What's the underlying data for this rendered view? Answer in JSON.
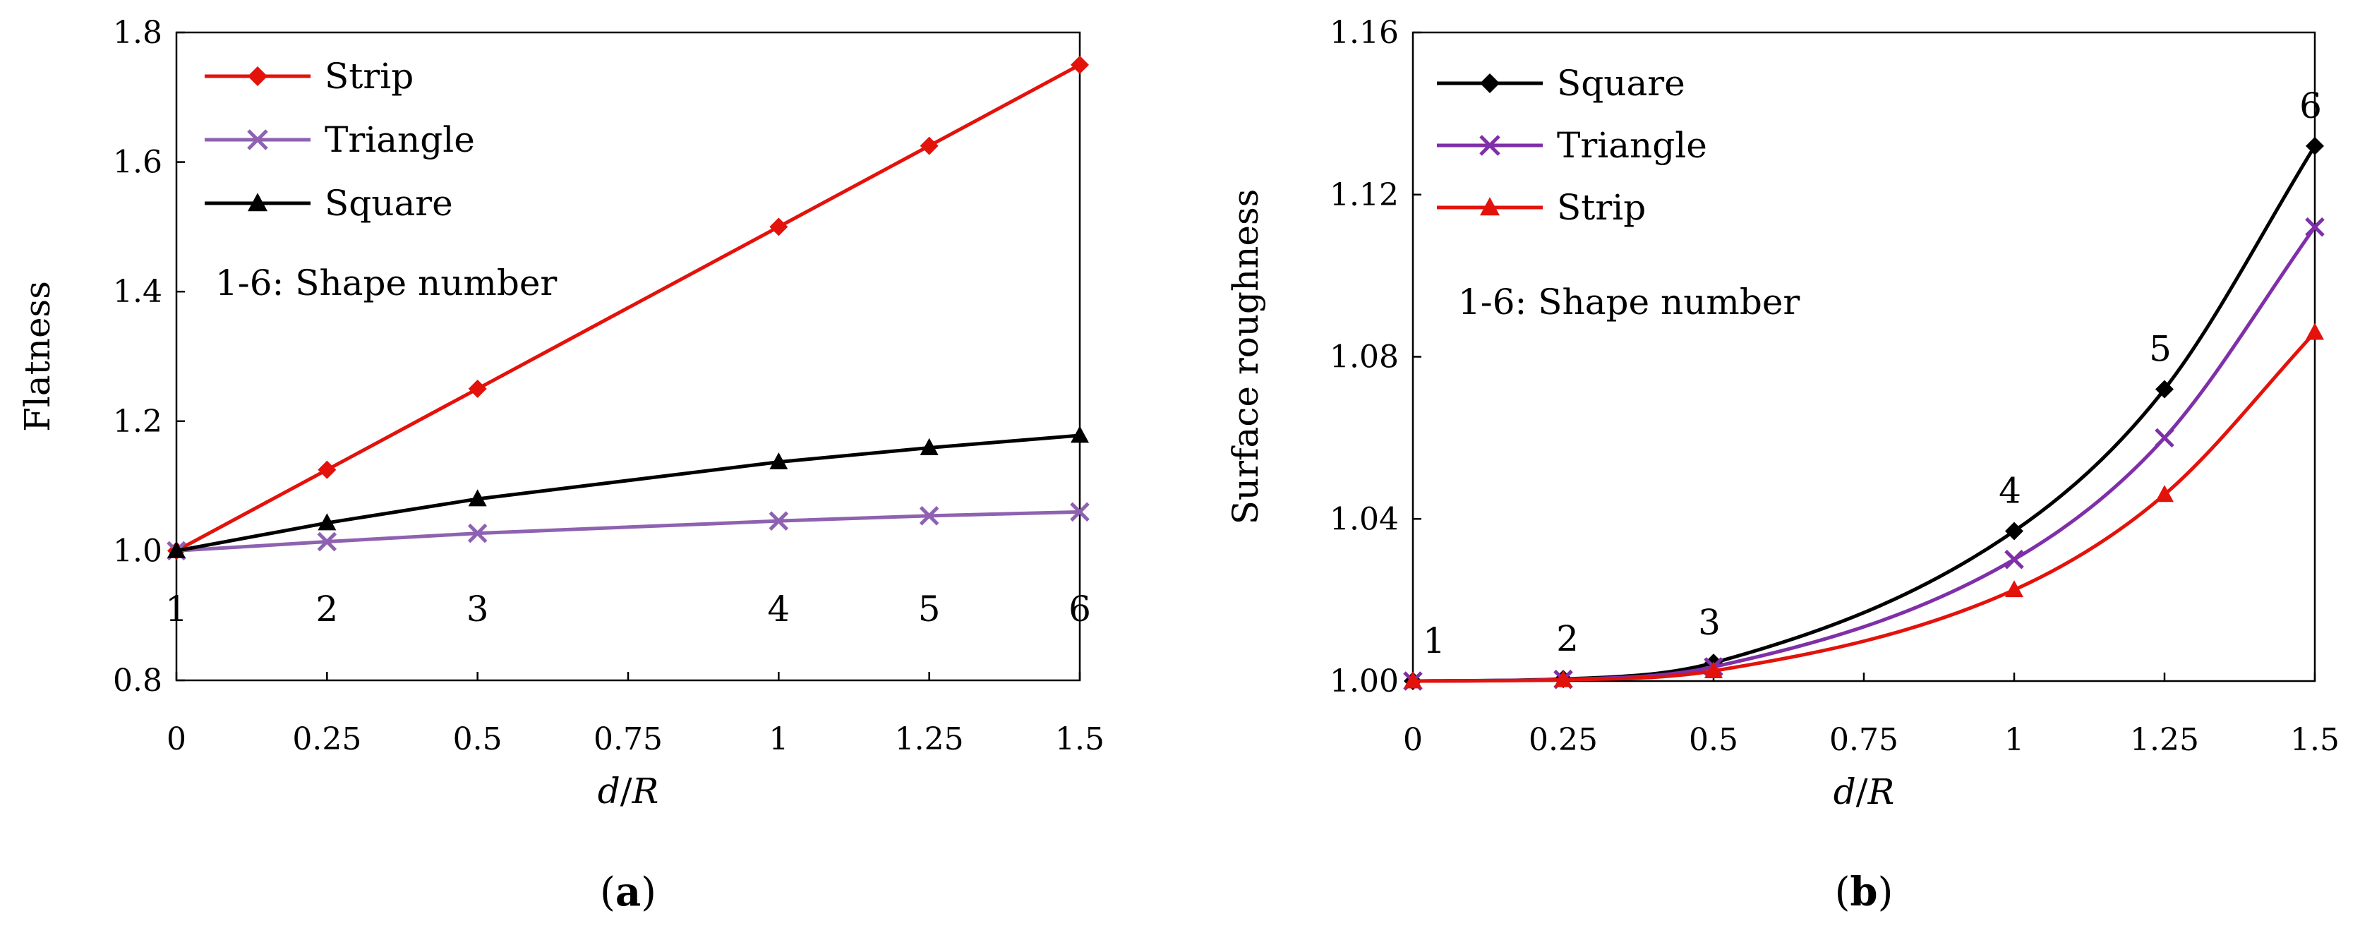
{
  "chart_data": [
    {
      "type": "line",
      "panel_label": "(a)",
      "xlabel": "d/R",
      "ylabel": "Flatness",
      "x": [
        0,
        0.25,
        0.5,
        1,
        1.25,
        1.5
      ],
      "x_tick_labels": [
        "0",
        "0.25",
        "0.5",
        "0.75",
        "1",
        "1.25",
        "1.5"
      ],
      "x_ticks": [
        0,
        0.25,
        0.5,
        0.75,
        1,
        1.25,
        1.5
      ],
      "xlim": [
        0,
        1.5
      ],
      "ylim": [
        0.8,
        1.8
      ],
      "y_ticks": [
        0.8,
        1.0,
        1.2,
        1.4,
        1.6,
        1.8
      ],
      "y_tick_labels": [
        "0.8",
        "1.0",
        "1.2",
        "1.4",
        "1.6",
        "1.8"
      ],
      "series": [
        {
          "name": "Strip",
          "color": "#e3120b",
          "marker": "diamond",
          "values": [
            1.0,
            1.125,
            1.25,
            1.5,
            1.625,
            1.75
          ]
        },
        {
          "name": "Triangle",
          "color": "#8e62b0",
          "marker": "x",
          "values": [
            1.0,
            1.014,
            1.027,
            1.046,
            1.054,
            1.06
          ]
        },
        {
          "name": "Square",
          "color": "#000000",
          "marker": "triangle",
          "values": [
            1.0,
            1.043,
            1.08,
            1.137,
            1.159,
            1.178
          ]
        }
      ],
      "shape_numbers": [
        "1",
        "2",
        "3",
        "4",
        "5",
        "6"
      ],
      "annotation": "1-6: Shape number"
    },
    {
      "type": "line",
      "panel_label": "(b)",
      "xlabel": "d/R",
      "ylabel": "Surface roughness",
      "x": [
        0,
        0.25,
        0.5,
        1,
        1.25,
        1.5
      ],
      "x_tick_labels": [
        "0",
        "0.25",
        "0.5",
        "0.75",
        "1",
        "1.25",
        "1.5"
      ],
      "x_ticks": [
        0,
        0.25,
        0.5,
        0.75,
        1,
        1.25,
        1.5
      ],
      "xlim": [
        0,
        1.5
      ],
      "ylim": [
        1.0,
        1.16
      ],
      "y_ticks": [
        1.0,
        1.04,
        1.08,
        1.12,
        1.16
      ],
      "y_tick_labels": [
        "1.00",
        "1.04",
        "1.08",
        "1.12",
        "1.16"
      ],
      "series": [
        {
          "name": "Square",
          "color": "#000000",
          "marker": "diamond",
          "values": [
            1.0,
            1.0005,
            1.0045,
            1.037,
            1.072,
            1.132
          ]
        },
        {
          "name": "Triangle",
          "color": "#7f2fa8",
          "marker": "x",
          "values": [
            1.0,
            1.0004,
            1.0035,
            1.03,
            1.06,
            1.112
          ]
        },
        {
          "name": "Strip",
          "color": "#e3120b",
          "marker": "triangle",
          "values": [
            1.0,
            1.0003,
            1.0025,
            1.0225,
            1.046,
            1.086
          ]
        }
      ],
      "shape_numbers": [
        "1",
        "2",
        "3",
        "4",
        "5",
        "6"
      ],
      "annotation": "1-6: Shape number"
    }
  ]
}
